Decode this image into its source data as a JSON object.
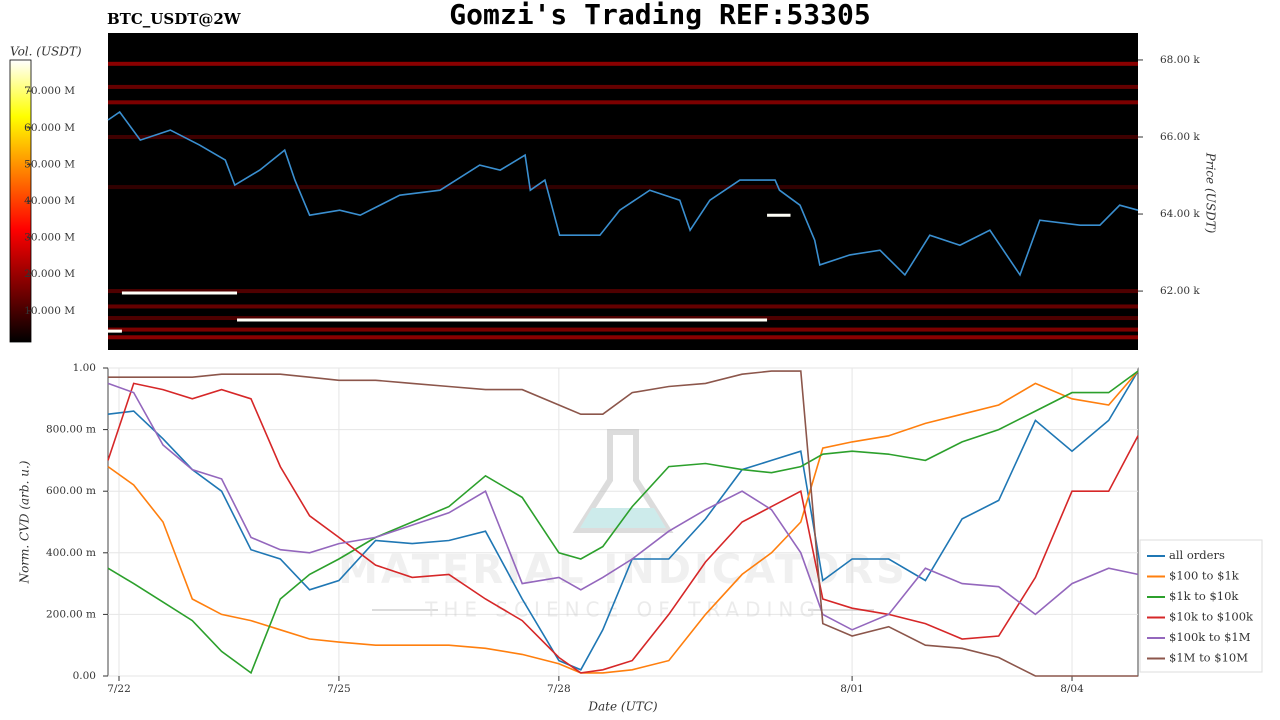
{
  "chart_data": [
    {
      "type": "heatmap",
      "title": "Gomzi's Trading REF:53305",
      "subtitle": "BTC_USDT@2W",
      "y_label": "Price (USDT)",
      "colorbar_label": "Vol. (USDT)",
      "xlim": [
        21.85,
        35.9
      ],
      "ylim": [
        60.47,
        68.7
      ],
      "yticks": [
        {
          "value": 62,
          "label": "62.00 k"
        },
        {
          "value": 64,
          "label": "64.00 k"
        },
        {
          "value": 66,
          "label": "66.00 k"
        },
        {
          "value": 68,
          "label": "68.00 k"
        }
      ],
      "clim": [
        1.5,
        78.5
      ],
      "cticks": [
        {
          "value": 10,
          "label": "10.000 M"
        },
        {
          "value": 20,
          "label": "20.000 M"
        },
        {
          "value": 30,
          "label": "30.000 M"
        },
        {
          "value": 40,
          "label": "40.000 M"
        },
        {
          "value": 50,
          "label": "50.000 M"
        },
        {
          "value": 60,
          "label": "60.000 M"
        },
        {
          "value": 70,
          "label": "70.000 M"
        }
      ],
      "color": "#3a8fd0",
      "x": [
        21.85,
        22.01,
        22.29,
        22.7,
        23.1,
        23.45,
        23.58,
        23.92,
        24.26,
        24.4,
        24.6,
        25.01,
        25.29,
        25.83,
        26.38,
        26.92,
        27.2,
        27.54,
        27.61,
        27.81,
        28.01,
        28.29,
        28.56,
        28.83,
        29.24,
        29.65,
        29.79,
        30.06,
        30.47,
        30.95,
        31.01,
        31.29,
        31.49,
        31.56,
        31.97,
        32.38,
        32.72,
        33.06,
        33.47,
        33.88,
        34.29,
        34.56,
        35.11,
        35.38,
        35.65,
        35.9
      ],
      "values": [
        66.44,
        66.65,
        65.92,
        66.18,
        65.79,
        65.4,
        64.75,
        65.14,
        65.66,
        64.88,
        63.97,
        64.1,
        63.97,
        64.49,
        64.62,
        65.27,
        65.14,
        65.53,
        64.62,
        64.88,
        63.45,
        63.45,
        63.45,
        64.1,
        64.62,
        64.36,
        63.58,
        64.36,
        64.88,
        64.88,
        64.62,
        64.23,
        63.32,
        62.68,
        62.94,
        63.06,
        62.42,
        63.45,
        63.19,
        63.58,
        62.42,
        63.84,
        63.71,
        63.71,
        64.23,
        64.1
      ],
      "bands": [
        {
          "price": 67.9,
          "volume": 20
        },
        {
          "price": 67.3,
          "volume": 15
        },
        {
          "price": 66.9,
          "volume": 18
        },
        {
          "price": 66.0,
          "volume": 10
        },
        {
          "price": 64.7,
          "volume": 8
        },
        {
          "price": 62.0,
          "volume": 12
        },
        {
          "price": 61.6,
          "volume": 15
        },
        {
          "price": 61.3,
          "volume": 12
        },
        {
          "price": 61.0,
          "volume": 18
        },
        {
          "price": 60.8,
          "volume": 20
        }
      ],
      "orders": [
        {
          "x": [
            22.04,
            23.61
          ],
          "price": 61.95,
          "volume": 78
        },
        {
          "x": [
            23.61,
            30.84
          ],
          "price": 61.25,
          "volume": 78
        },
        {
          "x": [
            21.85,
            22.04
          ],
          "price": 60.96,
          "volume": 78
        },
        {
          "x": [
            30.84,
            31.16
          ],
          "price": 63.97,
          "volume": 78
        }
      ]
    },
    {
      "type": "line",
      "x_label": "Date (UTC)",
      "y_label": "Norm. CVD (arb. u.)",
      "watermark": "MATERIAL INDICATORS",
      "watermark_sub": "THE SCIENCE OF TRADING",
      "xlim": [
        21.85,
        35.9
      ],
      "ylim": [
        0,
        1
      ],
      "xticks": [
        {
          "value": 22,
          "label": "7/22"
        },
        {
          "value": 25,
          "label": "7/25"
        },
        {
          "value": 28,
          "label": "7/28"
        },
        {
          "value": 32,
          "label": "8/01"
        },
        {
          "value": 35,
          "label": "8/04"
        }
      ],
      "yticks": [
        {
          "value": 0,
          "label": "0.00"
        },
        {
          "value": 0.2,
          "label": "200.00 m"
        },
        {
          "value": 0.4,
          "label": "400.00 m"
        },
        {
          "value": 0.6,
          "label": "600.00 m"
        },
        {
          "value": 0.8,
          "label": "800.00 m"
        },
        {
          "value": 1,
          "label": "1.00"
        }
      ],
      "grid": true,
      "x": [
        21.85,
        22.2,
        22.6,
        23.0,
        23.4,
        23.8,
        24.2,
        24.6,
        25.0,
        25.5,
        26.0,
        26.5,
        27.0,
        27.5,
        28.0,
        28.3,
        28.6,
        29.0,
        29.5,
        30.0,
        30.5,
        30.9,
        31.3,
        31.6,
        32.0,
        32.5,
        33.0,
        33.5,
        34.0,
        34.5,
        35.0,
        35.5,
        35.9
      ],
      "series": [
        {
          "name": "all orders",
          "color": "#1f77b4",
          "values": [
            0.85,
            0.86,
            0.77,
            0.67,
            0.6,
            0.41,
            0.38,
            0.28,
            0.31,
            0.44,
            0.43,
            0.44,
            0.47,
            0.25,
            0.05,
            0.02,
            0.15,
            0.38,
            0.38,
            0.51,
            0.67,
            0.7,
            0.73,
            0.31,
            0.38,
            0.38,
            0.31,
            0.51,
            0.57,
            0.83,
            0.73,
            0.83,
            0.99
          ]
        },
        {
          "name": "$100 to $1k",
          "color": "#ff7f0e",
          "values": [
            0.68,
            0.62,
            0.5,
            0.25,
            0.2,
            0.18,
            0.15,
            0.12,
            0.11,
            0.1,
            0.1,
            0.1,
            0.09,
            0.07,
            0.04,
            0.01,
            0.01,
            0.02,
            0.05,
            0.2,
            0.33,
            0.4,
            0.5,
            0.74,
            0.76,
            0.78,
            0.82,
            0.85,
            0.88,
            0.95,
            0.9,
            0.88,
            0.99
          ]
        },
        {
          "name": "$1k to $10k",
          "color": "#2ca02c",
          "values": [
            0.35,
            0.3,
            0.24,
            0.18,
            0.08,
            0.01,
            0.25,
            0.33,
            0.38,
            0.45,
            0.5,
            0.55,
            0.65,
            0.58,
            0.4,
            0.38,
            0.42,
            0.55,
            0.68,
            0.69,
            0.67,
            0.66,
            0.68,
            0.72,
            0.73,
            0.72,
            0.7,
            0.76,
            0.8,
            0.86,
            0.92,
            0.92,
            0.99
          ]
        },
        {
          "name": "$10k to $100k",
          "color": "#d62728",
          "values": [
            0.7,
            0.95,
            0.93,
            0.9,
            0.93,
            0.9,
            0.68,
            0.52,
            0.45,
            0.36,
            0.32,
            0.33,
            0.25,
            0.18,
            0.06,
            0.01,
            0.02,
            0.05,
            0.2,
            0.37,
            0.5,
            0.55,
            0.6,
            0.25,
            0.22,
            0.2,
            0.17,
            0.12,
            0.13,
            0.32,
            0.6,
            0.6,
            0.78
          ]
        },
        {
          "name": "$100k to $1M",
          "color": "#9467bd",
          "values": [
            0.95,
            0.92,
            0.75,
            0.67,
            0.64,
            0.45,
            0.41,
            0.4,
            0.43,
            0.45,
            0.49,
            0.53,
            0.6,
            0.3,
            0.32,
            0.28,
            0.32,
            0.38,
            0.47,
            0.54,
            0.6,
            0.54,
            0.4,
            0.2,
            0.15,
            0.2,
            0.35,
            0.3,
            0.29,
            0.2,
            0.3,
            0.35,
            0.33
          ]
        },
        {
          "name": "$1M to $10M",
          "color": "#8c564b",
          "values": [
            0.97,
            0.97,
            0.97,
            0.97,
            0.98,
            0.98,
            0.98,
            0.97,
            0.96,
            0.96,
            0.95,
            0.94,
            0.93,
            0.93,
            0.88,
            0.85,
            0.85,
            0.92,
            0.94,
            0.95,
            0.98,
            0.99,
            0.99,
            0.17,
            0.13,
            0.16,
            0.1,
            0.09,
            0.06,
            0,
            0,
            0,
            0
          ]
        }
      ]
    }
  ]
}
